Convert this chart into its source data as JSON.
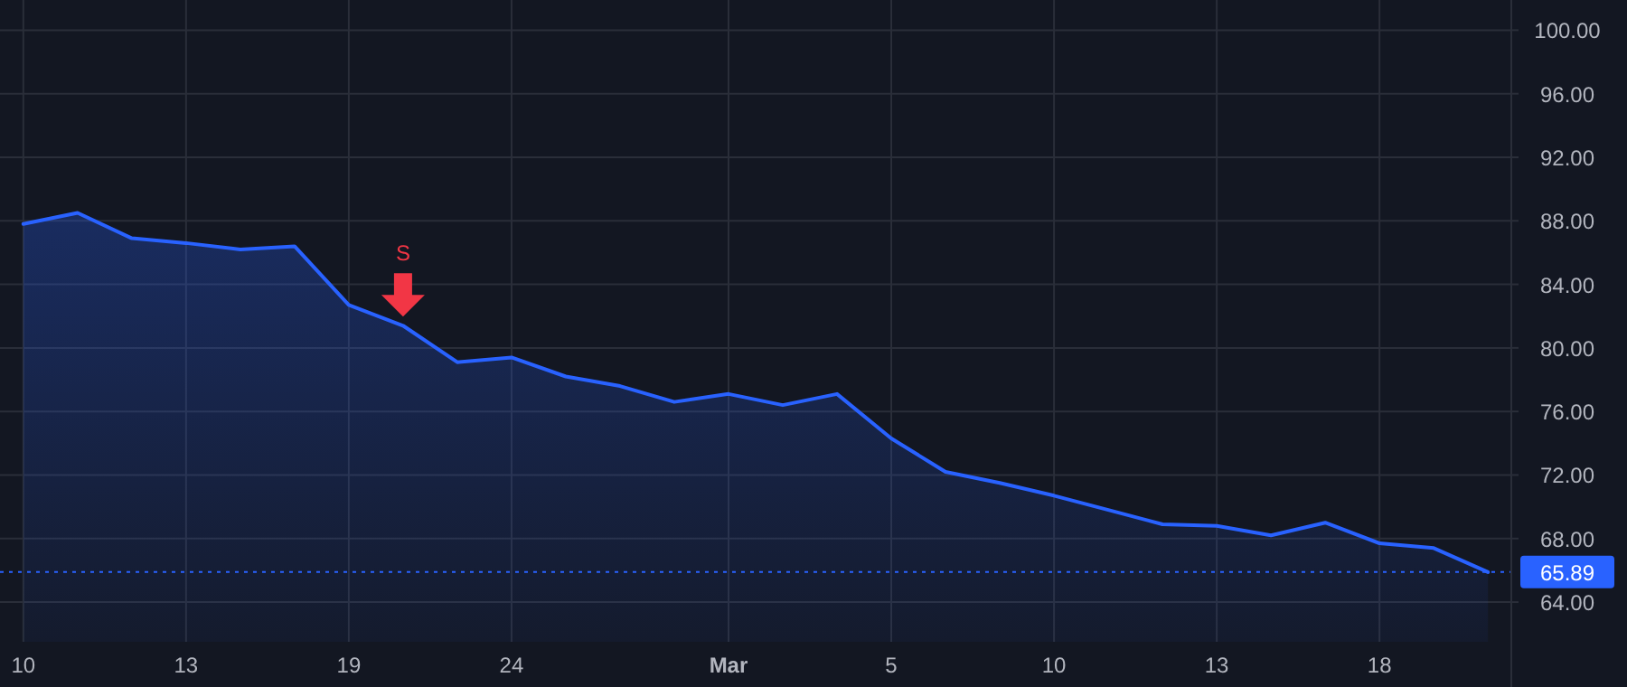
{
  "chart_data": {
    "type": "area",
    "categories": [
      "10",
      null,
      null,
      "13",
      null,
      null,
      "19",
      null,
      null,
      "24",
      null,
      null,
      null,
      "Mar",
      null,
      null,
      "5",
      null,
      null,
      "10",
      null,
      null,
      "13",
      null,
      null,
      "18",
      null,
      null
    ],
    "series": [
      {
        "color": "#2962ff",
        "values": [
          87.8,
          88.5,
          86.9,
          86.6,
          86.2,
          86.4,
          82.7,
          81.4,
          79.1,
          79.4,
          78.2,
          77.6,
          76.6,
          77.1,
          76.4,
          77.1,
          74.3,
          72.2,
          71.5,
          70.7,
          69.8,
          68.9,
          68.8,
          68.2,
          69,
          67.7,
          67.4,
          65.89
        ]
      }
    ],
    "ylim": [
      61.5,
      101.9
    ],
    "yticks": [
      {
        "value": 64,
        "label": "64.00"
      },
      {
        "value": 68,
        "label": "68.00"
      },
      {
        "value": 72,
        "label": "72.00"
      },
      {
        "value": 76,
        "label": "76.00"
      },
      {
        "value": 80,
        "label": "80.00"
      },
      {
        "value": 84,
        "label": "84.00"
      },
      {
        "value": 88,
        "label": "88.00"
      },
      {
        "value": 92,
        "label": "92.00"
      },
      {
        "value": 96,
        "label": "96.00"
      },
      {
        "value": 100,
        "label": "100.00"
      }
    ],
    "grid": true,
    "ref_lines": [
      {
        "axis": "y",
        "value": 65.89,
        "label": "65.89",
        "color": "#2962ff",
        "line_style": "dotted"
      }
    ],
    "annotations": [
      {
        "text": "S",
        "y": 81.4
      }
    ]
  }
}
